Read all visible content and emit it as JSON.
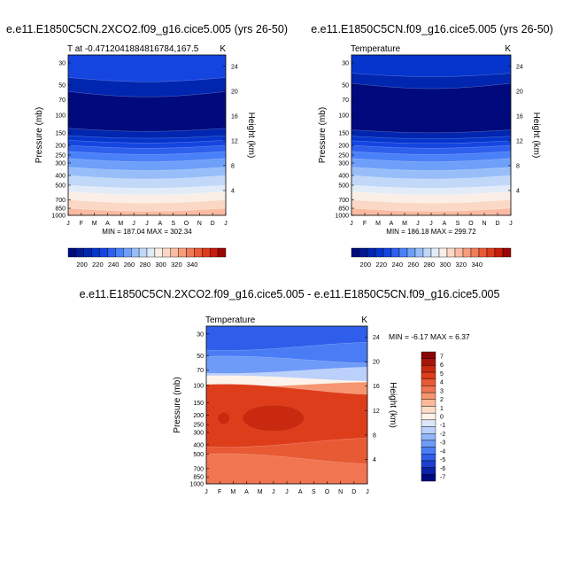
{
  "colors": {
    "abs_scale": [
      "#000a7d",
      "#001a94",
      "#0026b0",
      "#0535cc",
      "#1545e0",
      "#2e60ee",
      "#4a80f8",
      "#6e9ff9",
      "#98bef9",
      "#c2d8f8",
      "#e2ecf8",
      "#fbeee6",
      "#fbd8c6",
      "#fbbba2",
      "#f89c7c",
      "#f27c5a",
      "#ea5a36",
      "#de3a1a",
      "#c51c0b",
      "#9a0606"
    ],
    "diff_scale": [
      "#000a7d",
      "#0a22a8",
      "#1c3fd0",
      "#2e5eea",
      "#4a7df5",
      "#6e9af8",
      "#93b6fa",
      "#bbd0fa",
      "#dce6f8",
      "#fdf3ea",
      "#fcdcc5",
      "#f9b99a",
      "#f59670",
      "#f07550",
      "#e85a34",
      "#de3d1c",
      "#c92a0f",
      "#a7150a",
      "#8a0606"
    ]
  },
  "chart_data": [
    {
      "type": "contour",
      "title": "e.e11.E1850C5CN.2XCO2.f09_g16.cice5.005 (yrs 26-50)",
      "subtitle_left": "T at -0.4712041884816784,167.5",
      "unit": "K",
      "xlabel": "",
      "ylabel": "Pressure (mb)",
      "y2label": "Height (km)",
      "x_ticks": [
        "J",
        "F",
        "M",
        "A",
        "M",
        "J",
        "J",
        "A",
        "S",
        "O",
        "N",
        "D",
        "J"
      ],
      "y_ticks": [
        "30",
        "50",
        "70",
        "100",
        "150",
        "200",
        "250",
        "300",
        "400",
        "500",
        "700",
        "850",
        "1000"
      ],
      "y2_ticks": [
        "24",
        "20",
        "16",
        "12",
        "8",
        "4"
      ],
      "ylim": [
        1000,
        25
      ],
      "stats": "MIN = 187.04 MAX = 302.34",
      "colorbar_labels": [
        "200",
        "220",
        "240",
        "260",
        "280",
        "300",
        "320",
        "340"
      ],
      "layers": [
        {
          "top": 25,
          "bottom": 42,
          "level": 4
        },
        {
          "top": 42,
          "bottom": 58,
          "level": 2
        },
        {
          "top": 58,
          "bottom": 135,
          "level": 0
        },
        {
          "top": 135,
          "bottom": 160,
          "level": 2
        },
        {
          "top": 160,
          "bottom": 178,
          "level": 3
        },
        {
          "top": 178,
          "bottom": 200,
          "level": 4
        },
        {
          "top": 200,
          "bottom": 230,
          "level": 5
        },
        {
          "top": 230,
          "bottom": 270,
          "level": 6
        },
        {
          "top": 270,
          "bottom": 330,
          "level": 7
        },
        {
          "top": 330,
          "bottom": 400,
          "level": 8
        },
        {
          "top": 400,
          "bottom": 500,
          "level": 9
        },
        {
          "top": 500,
          "bottom": 580,
          "level": 10
        },
        {
          "top": 580,
          "bottom": 700,
          "level": 11
        },
        {
          "top": 700,
          "bottom": 850,
          "level": 12
        },
        {
          "top": 850,
          "bottom": 1000,
          "level": 13
        }
      ]
    },
    {
      "type": "contour",
      "title": "e.e11.E1850C5CN.f09_g16.cice5.005 (yrs 26-50)",
      "subtitle_left": "Temperature",
      "unit": "K",
      "xlabel": "",
      "ylabel": "Pressure (mb)",
      "y2label": "Height (km)",
      "x_ticks": [
        "J",
        "F",
        "M",
        "A",
        "M",
        "J",
        "J",
        "A",
        "S",
        "O",
        "N",
        "D",
        "J"
      ],
      "y_ticks": [
        "30",
        "50",
        "70",
        "100",
        "150",
        "200",
        "250",
        "300",
        "400",
        "500",
        "700",
        "850",
        "1000"
      ],
      "y2_ticks": [
        "24",
        "20",
        "16",
        "12",
        "8",
        "4"
      ],
      "ylim": [
        1000,
        25
      ],
      "stats": "MIN = 186.18 MAX = 299.72",
      "colorbar_labels": [
        "200",
        "220",
        "240",
        "260",
        "280",
        "300",
        "320",
        "340"
      ],
      "layers": [
        {
          "top": 25,
          "bottom": 38,
          "level": 3
        },
        {
          "top": 38,
          "bottom": 48,
          "level": 2
        },
        {
          "top": 48,
          "bottom": 140,
          "level": 0
        },
        {
          "top": 140,
          "bottom": 162,
          "level": 2
        },
        {
          "top": 162,
          "bottom": 180,
          "level": 3
        },
        {
          "top": 180,
          "bottom": 200,
          "level": 4
        },
        {
          "top": 200,
          "bottom": 230,
          "level": 5
        },
        {
          "top": 230,
          "bottom": 270,
          "level": 6
        },
        {
          "top": 270,
          "bottom": 330,
          "level": 7
        },
        {
          "top": 330,
          "bottom": 400,
          "level": 8
        },
        {
          "top": 400,
          "bottom": 500,
          "level": 9
        },
        {
          "top": 500,
          "bottom": 580,
          "level": 10
        },
        {
          "top": 580,
          "bottom": 700,
          "level": 11
        },
        {
          "top": 700,
          "bottom": 850,
          "level": 12
        },
        {
          "top": 850,
          "bottom": 1000,
          "level": 13
        }
      ]
    },
    {
      "type": "contour",
      "title": "e.e11.E1850C5CN.2XCO2.f09_g16.cice5.005 - e.e11.E1850C5CN.f09_g16.cice5.005",
      "subtitle_left": "Temperature",
      "unit": "K",
      "xlabel": "",
      "ylabel": "Pressure (mb)",
      "y2label": "Height (km)",
      "x_ticks": [
        "J",
        "F",
        "M",
        "A",
        "M",
        "J",
        "J",
        "A",
        "S",
        "O",
        "N",
        "D",
        "J"
      ],
      "y_ticks": [
        "30",
        "50",
        "70",
        "100",
        "150",
        "200",
        "250",
        "300",
        "400",
        "500",
        "700",
        "850",
        "1000"
      ],
      "y2_ticks": [
        "24",
        "20",
        "16",
        "12",
        "8",
        "4"
      ],
      "ylim": [
        1000,
        25
      ],
      "stats": "MIN =  -6.17 MAX =   6.37",
      "colorbar_labels": [
        "7",
        "6",
        "5",
        "4",
        "3",
        "2",
        "1",
        "0",
        "-1",
        "-2",
        "-3",
        "-4",
        "-5",
        "-6",
        "-7"
      ],
      "layers": [
        {
          "top": 25,
          "bottom": 40,
          "level": 3
        },
        {
          "top": 40,
          "bottom": 55,
          "level": 4
        },
        {
          "top": 55,
          "bottom": 70,
          "level": 5
        },
        {
          "top": 70,
          "bottom": 85,
          "level": 7
        },
        {
          "top": 85,
          "bottom": 98,
          "level": 9
        },
        {
          "top": 98,
          "bottom": 110,
          "level": 12
        },
        {
          "top": 110,
          "bottom": 380,
          "level": 15
        },
        {
          "top": 380,
          "bottom": 560,
          "level": 14
        },
        {
          "top": 560,
          "bottom": 1000,
          "level": 13
        }
      ],
      "blobs": [
        {
          "month": 5.0,
          "p": 215,
          "level": 16
        },
        {
          "month": 1.3,
          "p": 215,
          "level": 16
        }
      ]
    }
  ]
}
